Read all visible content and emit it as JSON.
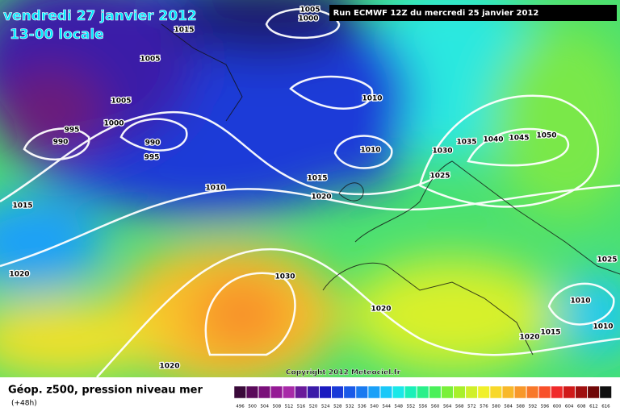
{
  "header": {
    "date": "vendredi 27 janvier 2012",
    "time": "13-00 locale",
    "run": "Run ECMWF 12Z du mercredi 25 janvier 2012"
  },
  "isobar_labels": [
    1005,
    1000,
    1015,
    1005,
    1005,
    1000,
    995,
    990,
    990,
    995,
    1010,
    1010,
    1030,
    1035,
    1040,
    1045,
    1050,
    1025,
    1015,
    1020,
    1010,
    1015,
    1020,
    1030,
    1020,
    1025,
    1010,
    1010,
    1015,
    1020,
    1020
  ],
  "copyright": "Copyright 2012 Meteociel.fr",
  "footer": {
    "title": "Géop. z500, pression niveau mer",
    "lead": "(+48h)"
  },
  "colorbar": {
    "values": [
      496,
      500,
      504,
      508,
      512,
      516,
      520,
      524,
      528,
      532,
      536,
      540,
      544,
      548,
      552,
      556,
      560,
      564,
      568,
      572,
      576,
      580,
      584,
      588,
      592,
      596,
      600,
      604,
      608,
      612,
      616
    ],
    "colors": [
      "#3a0a3a",
      "#5a0a5a",
      "#7a107a",
      "#951a95",
      "#a82aa8",
      "#6a1a9a",
      "#3a1aa8",
      "#1a1ac0",
      "#1a3ad8",
      "#1a5ae8",
      "#1a7af0",
      "#1aa0f8",
      "#1ac8f8",
      "#1ae8e8",
      "#1af0b8",
      "#2af08a",
      "#4af05a",
      "#7af03a",
      "#a8f02a",
      "#d0f02a",
      "#f0f02a",
      "#f8d82a",
      "#f8b82a",
      "#f8982a",
      "#f8782a",
      "#f8502a",
      "#f02a2a",
      "#d01a1a",
      "#a01010",
      "#700808",
      "#101010"
    ]
  }
}
